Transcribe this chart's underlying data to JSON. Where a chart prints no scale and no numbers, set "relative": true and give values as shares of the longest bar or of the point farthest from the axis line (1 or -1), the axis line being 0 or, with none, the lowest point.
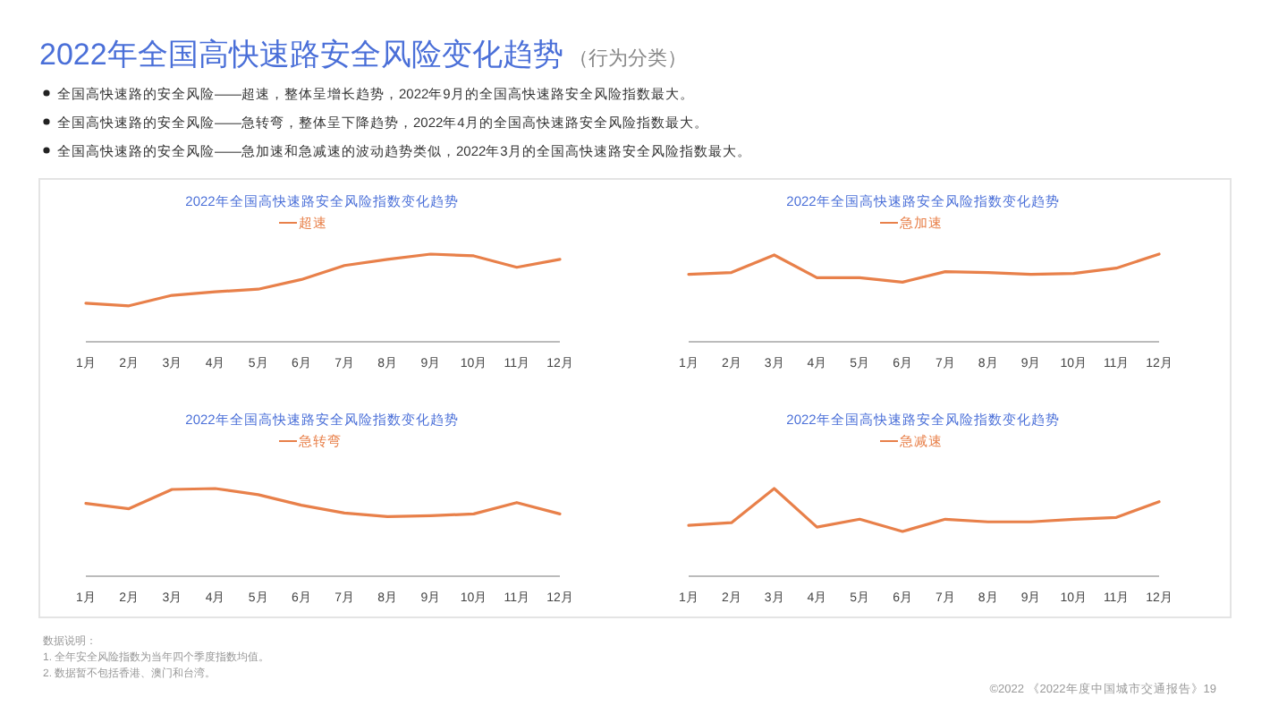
{
  "chart_data": [
    {
      "type": "other",
      "title": "2022年全国高快速路安全风险变化趋势",
      "subtitle": "（行为分类）",
      "annotations": [
        "全国高快速路的安全风险——超速，整体呈增长趋势，2022年9月的全国高快速路安全风险指数最大。",
        "全国高快速路的安全风险——急转弯，整体呈下降趋势，2022年4月的全国高快速路安全风险指数最大。",
        "全国高快速路的安全风险——急加速和急减速的波动趋势类似，2022年3月的全国高快速路安全风险指数最大。"
      ]
    },
    {
      "type": "line",
      "title": "2022年全国高快速路安全风险指数变化趋势",
      "relative": true,
      "legend": "top",
      "categories": [
        "1月",
        "2月",
        "3月",
        "4月",
        "5月",
        "6月",
        "7月",
        "8月",
        "9月",
        "10月",
        "11月",
        "12月"
      ],
      "series": [
        {
          "name": "超速",
          "color": "#e8804a",
          "values": [
            0.44,
            0.41,
            0.53,
            0.57,
            0.6,
            0.71,
            0.87,
            0.94,
            1,
            0.98,
            0.85,
            0.94
          ]
        }
      ]
    },
    {
      "type": "line",
      "title": "2022年全国高快速路安全风险指数变化趋势",
      "relative": true,
      "legend": "top",
      "categories": [
        "1月",
        "2月",
        "3月",
        "4月",
        "5月",
        "6月",
        "7月",
        "8月",
        "9月",
        "10月",
        "11月",
        "12月"
      ],
      "series": [
        {
          "name": "急加速",
          "color": "#e8804a",
          "values": [
            0.77,
            0.79,
            0.99,
            0.73,
            0.73,
            0.68,
            0.8,
            0.79,
            0.77,
            0.78,
            0.84,
            1
          ]
        }
      ]
    },
    {
      "type": "line",
      "title": "2022年全国高快速路安全风险指数变化趋势",
      "relative": true,
      "legend": "top",
      "categories": [
        "1月",
        "2月",
        "3月",
        "4月",
        "5月",
        "6月",
        "7月",
        "8月",
        "9月",
        "10月",
        "11月",
        "12月"
      ],
      "series": [
        {
          "name": "急转弯",
          "color": "#e8804a",
          "values": [
            0.83,
            0.77,
            0.99,
            1,
            0.93,
            0.81,
            0.72,
            0.68,
            0.69,
            0.71,
            0.84,
            0.71
          ]
        }
      ]
    },
    {
      "type": "line",
      "title": "2022年全国高快速路安全风险指数变化趋势",
      "relative": true,
      "legend": "top",
      "categories": [
        "1月",
        "2月",
        "3月",
        "4月",
        "5月",
        "6月",
        "7月",
        "8月",
        "9月",
        "10月",
        "11月",
        "12月"
      ],
      "series": [
        {
          "name": "急减速",
          "color": "#e8804a",
          "values": [
            0.58,
            0.61,
            1,
            0.56,
            0.65,
            0.51,
            0.65,
            0.62,
            0.62,
            0.65,
            0.67,
            0.85
          ]
        }
      ]
    },
    {
      "type": "other",
      "annotations": [
        "数据说明：",
        "1.  全年安全风险指数为当年四个季度指数均值。",
        "2.  数据暂不包括香港、澳门和台湾。",
        "©2022 《2022年度中国城市交通报告》19"
      ]
    }
  ]
}
